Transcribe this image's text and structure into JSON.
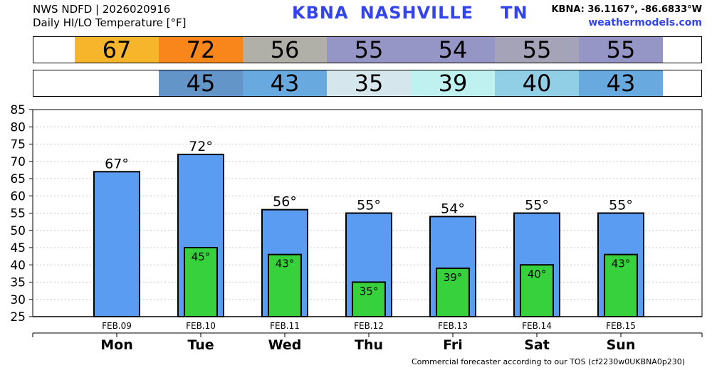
{
  "header": {
    "source_line": "NWS NDFD | 2026020916",
    "subtitle": "Daily HI/LO Temperature [°F]",
    "station": "KBNA",
    "city": "NASHVILLE",
    "state": "TN",
    "coords": "KBNA: 36.1167°, -86.6833°W",
    "site": "weathermodels.com"
  },
  "footer": "Commercial forecaster according to our TOS (cf2230w0UKBNA0p230)",
  "colors": {
    "bar_hi": "#5b9cf3",
    "bar_lo": "#38d13e",
    "hi_strip": [
      "#f7b52c",
      "#f8861a",
      "#b0b0a8",
      "#9595c6",
      "#9595c6",
      "#a4a3b8",
      "#9595c6"
    ],
    "lo_strip": [
      null,
      "#6495c8",
      "#68a9e0",
      "#d5e6ec",
      "#bff1f1",
      "#90cfe6",
      "#68a9e0"
    ]
  },
  "chart_data": {
    "type": "bar",
    "categories": [
      "Mon",
      "Tue",
      "Wed",
      "Thu",
      "Fri",
      "Sat",
      "Sun"
    ],
    "dates": [
      "FEB.09",
      "FEB.10",
      "FEB.11",
      "FEB.12",
      "FEB.13",
      "FEB.14",
      "FEB.15"
    ],
    "series": [
      {
        "values": [
          67,
          72,
          56,
          55,
          54,
          55,
          55
        ]
      },
      {
        "values": [
          null,
          45,
          43,
          35,
          39,
          40,
          43
        ]
      }
    ],
    "hi_labels": [
      "67°",
      "72°",
      "56°",
      "55°",
      "54°",
      "55°",
      "55°"
    ],
    "lo_labels": [
      "",
      "45°",
      "43°",
      "35°",
      "39°",
      "40°",
      "43°"
    ],
    "hi_strip_text": [
      "67",
      "72",
      "56",
      "55",
      "54",
      "55",
      "55"
    ],
    "lo_strip_text": [
      "",
      "45",
      "43",
      "35",
      "39",
      "40",
      "43"
    ],
    "ylim": [
      25,
      85
    ],
    "yticks": [
      "25",
      "30",
      "35",
      "40",
      "45",
      "50",
      "55",
      "60",
      "65",
      "70",
      "75",
      "80",
      "85"
    ],
    "grid": true
  }
}
